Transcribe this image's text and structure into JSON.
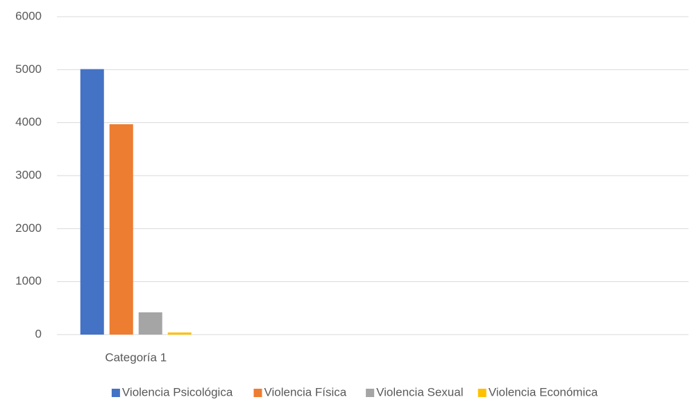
{
  "chart_data": {
    "type": "bar",
    "categories": [
      "Categoría 1",
      null,
      null,
      null
    ],
    "series": [
      {
        "name": "Violencia Psicológica",
        "color": "#4472c4",
        "values": [
          5010,
          null,
          null,
          null
        ]
      },
      {
        "name": "Violencia Física",
        "color": "#ed7d31",
        "values": [
          3970,
          null,
          null,
          null
        ]
      },
      {
        "name": "Violencia Sexual",
        "color": "#a5a5a5",
        "values": [
          420,
          null,
          null,
          null
        ]
      },
      {
        "name": "Violencia Económica",
        "color": "#ffc000",
        "values": [
          40,
          null,
          null,
          null
        ]
      }
    ],
    "ylim": [
      0,
      6000
    ],
    "yticks": [
      0,
      1000,
      2000,
      3000,
      4000,
      5000,
      6000
    ],
    "grid": true,
    "legend": "bottom"
  }
}
